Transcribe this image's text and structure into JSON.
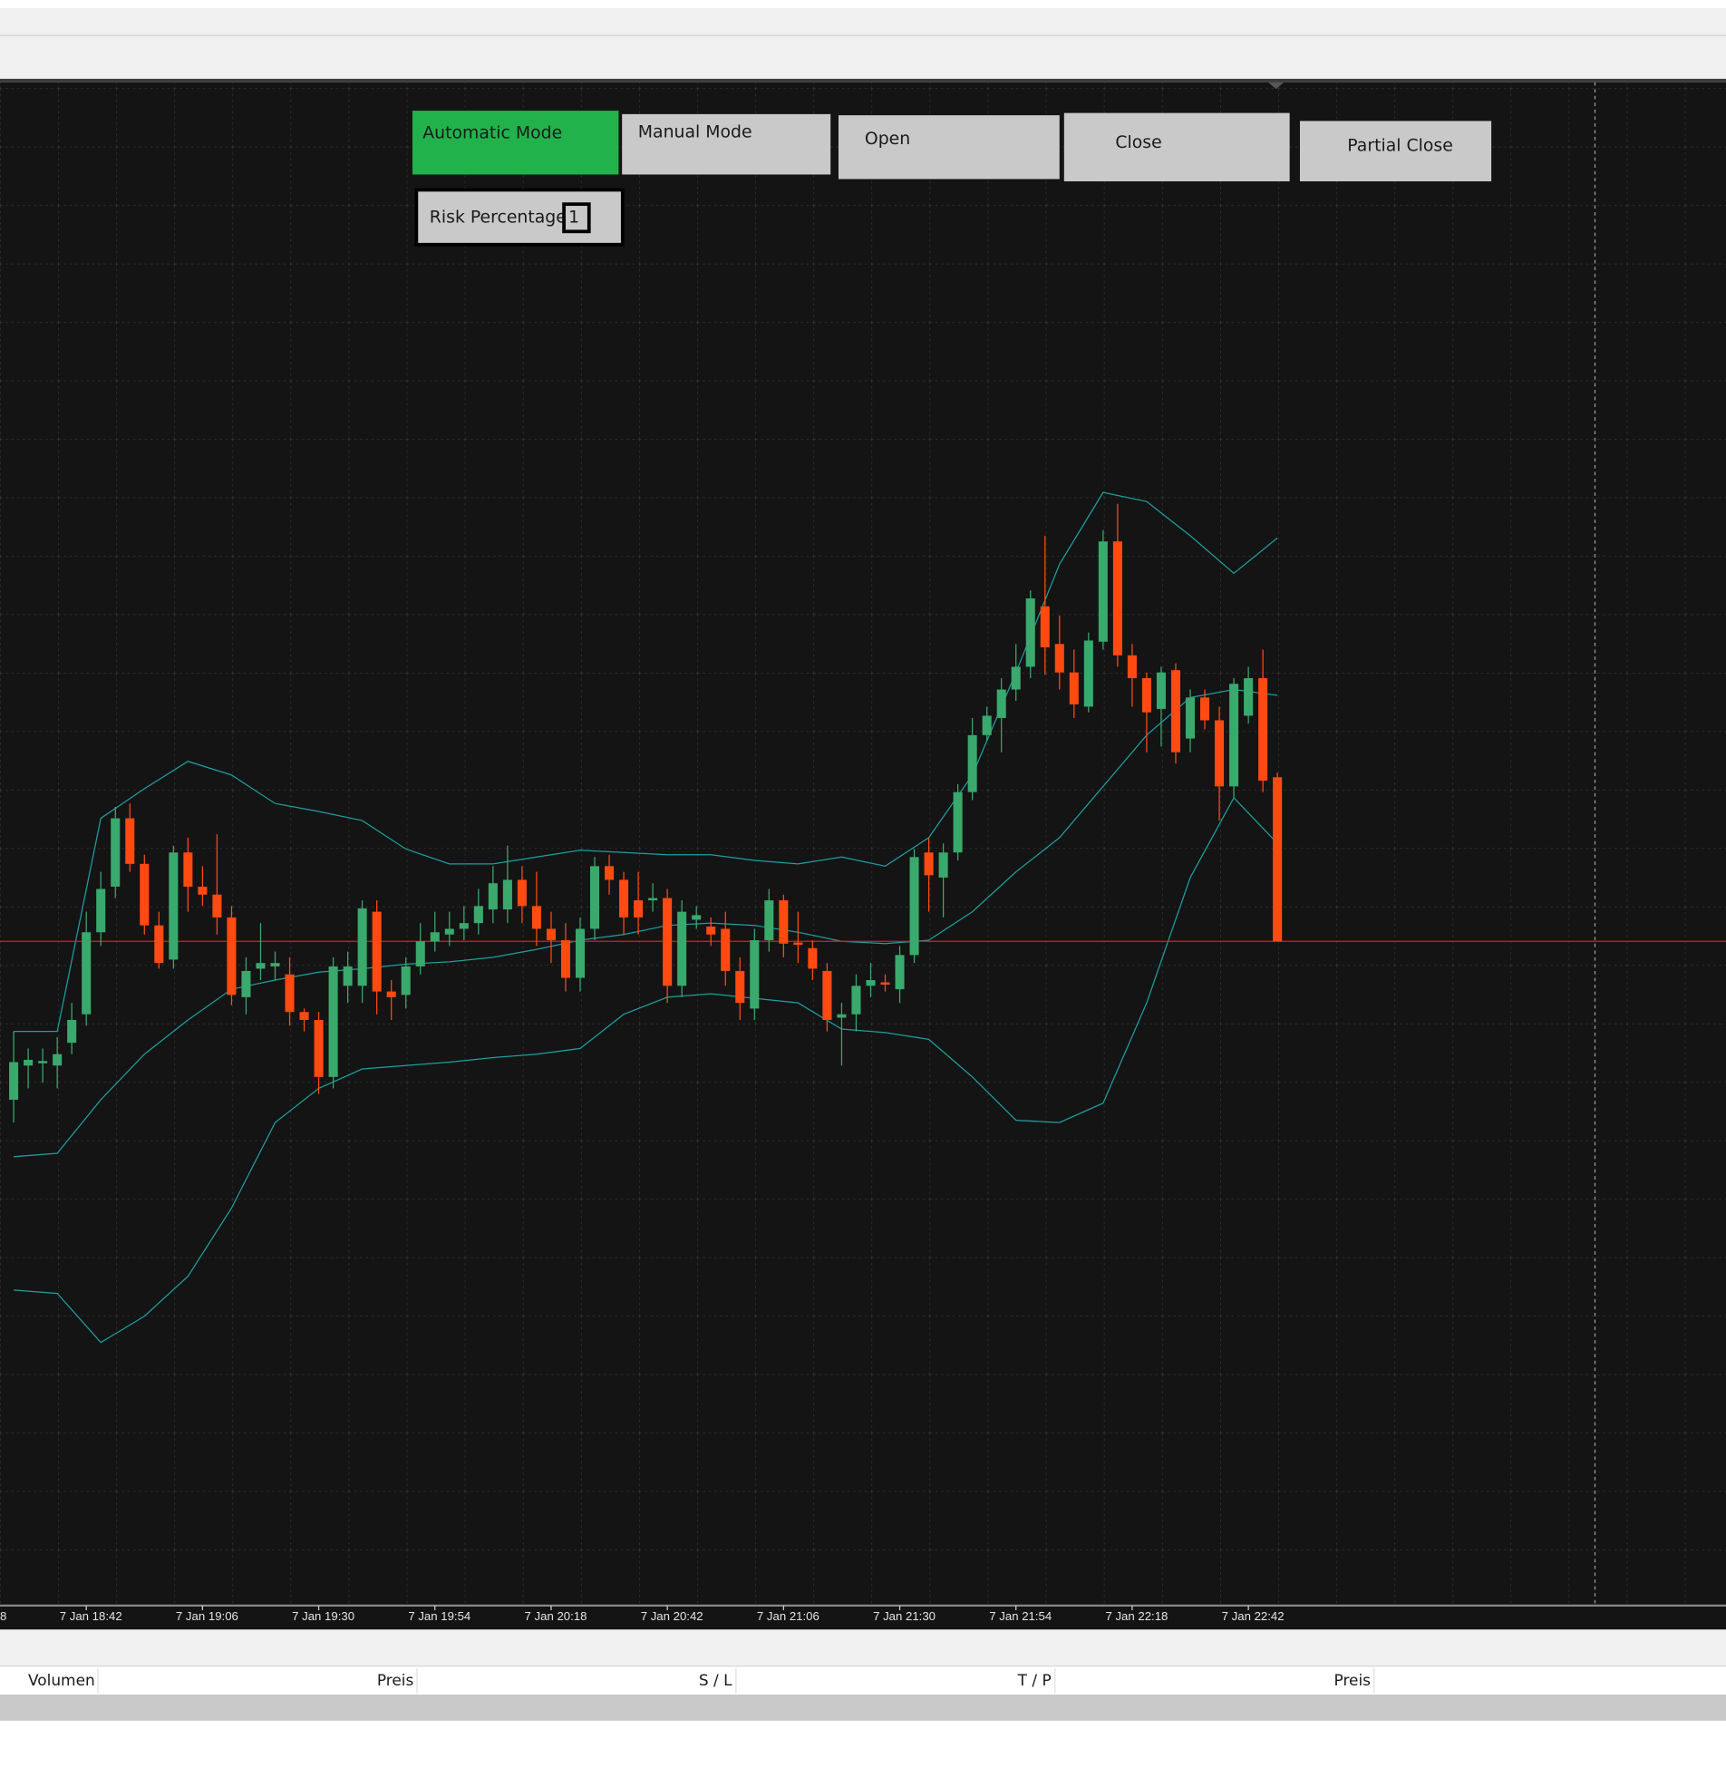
{
  "buttons": [
    {
      "label": "Automatic Mode",
      "active": true
    },
    {
      "label": "Manual Mode",
      "active": false
    },
    {
      "label": "Open",
      "active": false
    },
    {
      "label": "Close",
      "active": false
    },
    {
      "label": "Partial Close",
      "active": false
    }
  ],
  "risk": {
    "label": "Risk Percentage:",
    "value": "1"
  },
  "table": {
    "columns": [
      "Volumen",
      "Preis",
      "S / L",
      "T / P",
      "Preis"
    ]
  },
  "chart_data": {
    "type": "candlestick",
    "up_color": "#3aa96d",
    "down_color": "#ff4a12",
    "band_color": "#1f9e9e",
    "ylim": [
      93,
      1428
    ],
    "xticks": [
      {
        "value": -3,
        "label": "8"
      },
      {
        "value": 5,
        "label": "7 Jan 18:42"
      },
      {
        "value": 13,
        "label": "7 Jan 19:06"
      },
      {
        "value": 21,
        "label": "7 Jan 19:30"
      },
      {
        "value": 29,
        "label": "7 Jan 19:54"
      },
      {
        "value": 37,
        "label": "7 Jan 20:18"
      },
      {
        "value": 45,
        "label": "7 Jan 20:42"
      },
      {
        "value": 53,
        "label": "7 Jan 21:06"
      },
      {
        "value": 61,
        "label": "7 Jan 21:30"
      },
      {
        "value": 69,
        "label": "7 Jan 21:54"
      },
      {
        "value": 77,
        "label": "7 Jan 22:18"
      },
      {
        "value": 85,
        "label": "7 Jan 22:42"
      }
    ],
    "open": [
      535,
      565,
      567,
      565,
      585,
      610,
      682,
      722,
      782,
      742,
      688,
      658,
      752,
      722,
      715,
      695,
      625,
      650,
      652,
      645,
      612,
      605,
      555,
      635,
      635,
      700,
      630,
      627,
      652,
      674,
      680,
      685,
      690,
      702,
      702,
      728,
      705,
      685,
      675,
      642,
      685,
      740,
      728,
      710,
      710,
      712,
      635,
      693,
      687,
      685,
      648,
      615,
      675,
      710,
      673,
      668,
      648,
      607,
      610,
      635,
      638,
      632,
      662,
      752,
      730,
      752,
      805,
      855,
      870,
      895,
      915,
      968,
      935,
      910,
      880,
      937,
      1025,
      925,
      905,
      878,
      912,
      852,
      888,
      868,
      810,
      872,
      905,
      818
    ],
    "high": [
      595,
      580,
      580,
      590,
      620,
      700,
      735,
      792,
      795,
      750,
      700,
      758,
      765,
      740,
      768,
      705,
      660,
      690,
      665,
      660,
      615,
      612,
      660,
      665,
      710,
      710,
      640,
      660,
      690,
      700,
      700,
      705,
      720,
      740,
      758,
      740,
      735,
      700,
      690,
      695,
      748,
      750,
      735,
      735,
      725,
      720,
      710,
      705,
      695,
      700,
      660,
      685,
      720,
      715,
      700,
      675,
      655,
      620,
      645,
      655,
      645,
      670,
      755,
      765,
      760,
      812,
      870,
      880,
      905,
      935,
      982,
      1030,
      960,
      930,
      945,
      1035,
      1058,
      935,
      910,
      915,
      918,
      895,
      895,
      880,
      905,
      915,
      930,
      822
    ],
    "low": [
      515,
      545,
      550,
      545,
      575,
      600,
      670,
      712,
      735,
      680,
      650,
      650,
      700,
      705,
      680,
      618,
      610,
      640,
      640,
      600,
      595,
      540,
      545,
      620,
      620,
      610,
      605,
      615,
      645,
      665,
      670,
      675,
      680,
      690,
      690,
      690,
      670,
      655,
      630,
      630,
      675,
      715,
      680,
      680,
      700,
      620,
      625,
      685,
      670,
      635,
      605,
      605,
      665,
      660,
      655,
      640,
      595,
      565,
      595,
      625,
      630,
      620,
      655,
      700,
      695,
      745,
      798,
      850,
      840,
      885,
      905,
      908,
      895,
      870,
      875,
      930,
      915,
      880,
      840,
      845,
      830,
      840,
      860,
      780,
      800,
      865,
      805,
      674
    ],
    "close": [
      568,
      570,
      569,
      575,
      605,
      682,
      720,
      782,
      742,
      688,
      655,
      752,
      722,
      715,
      695,
      627,
      648,
      655,
      655,
      612,
      605,
      555,
      652,
      652,
      703,
      630,
      625,
      652,
      674,
      682,
      685,
      690,
      705,
      725,
      728,
      705,
      685,
      675,
      642,
      685,
      740,
      728,
      695,
      695,
      712,
      635,
      700,
      697,
      680,
      648,
      620,
      675,
      710,
      672,
      671,
      650,
      605,
      610,
      635,
      640,
      636,
      662,
      748,
      732,
      752,
      805,
      855,
      872,
      895,
      915,
      975,
      932,
      910,
      882,
      938,
      1025,
      925,
      905,
      875,
      910,
      840,
      888,
      868,
      810,
      900,
      905,
      815,
      674
    ],
    "bands": {
      "x": [
        0,
        3,
        6,
        9,
        12,
        15,
        18,
        21,
        24,
        27,
        30,
        33,
        36,
        39,
        42,
        45,
        48,
        51,
        54,
        57,
        60,
        63,
        66,
        69,
        72,
        75,
        78,
        81,
        84,
        87
      ],
      "series": [
        {
          "values": [
            595,
            595,
            782,
            808,
            832,
            820,
            795,
            788,
            780,
            755,
            742,
            742,
            748,
            754,
            752,
            750,
            750,
            745,
            742,
            748,
            740,
            765,
            820,
            910,
            1005,
            1068,
            1060,
            1030,
            997,
            1028
          ]
        },
        {
          "values": [
            485,
            488,
            535,
            575,
            605,
            632,
            640,
            647,
            650,
            654,
            656,
            660,
            667,
            675,
            680,
            688,
            690,
            688,
            682,
            674,
            672,
            675,
            700,
            735,
            765,
            810,
            855,
            888,
            895,
            890
          ]
        },
        {
          "values": [
            368,
            365,
            322,
            345,
            380,
            440,
            515,
            545,
            562,
            565,
            568,
            572,
            575,
            580,
            610,
            625,
            628,
            624,
            620,
            597,
            594,
            588,
            555,
            517,
            515,
            532,
            620,
            730,
            800,
            760
          ]
        }
      ]
    },
    "price_line": {
      "value": 674,
      "color": "#d42020"
    }
  }
}
